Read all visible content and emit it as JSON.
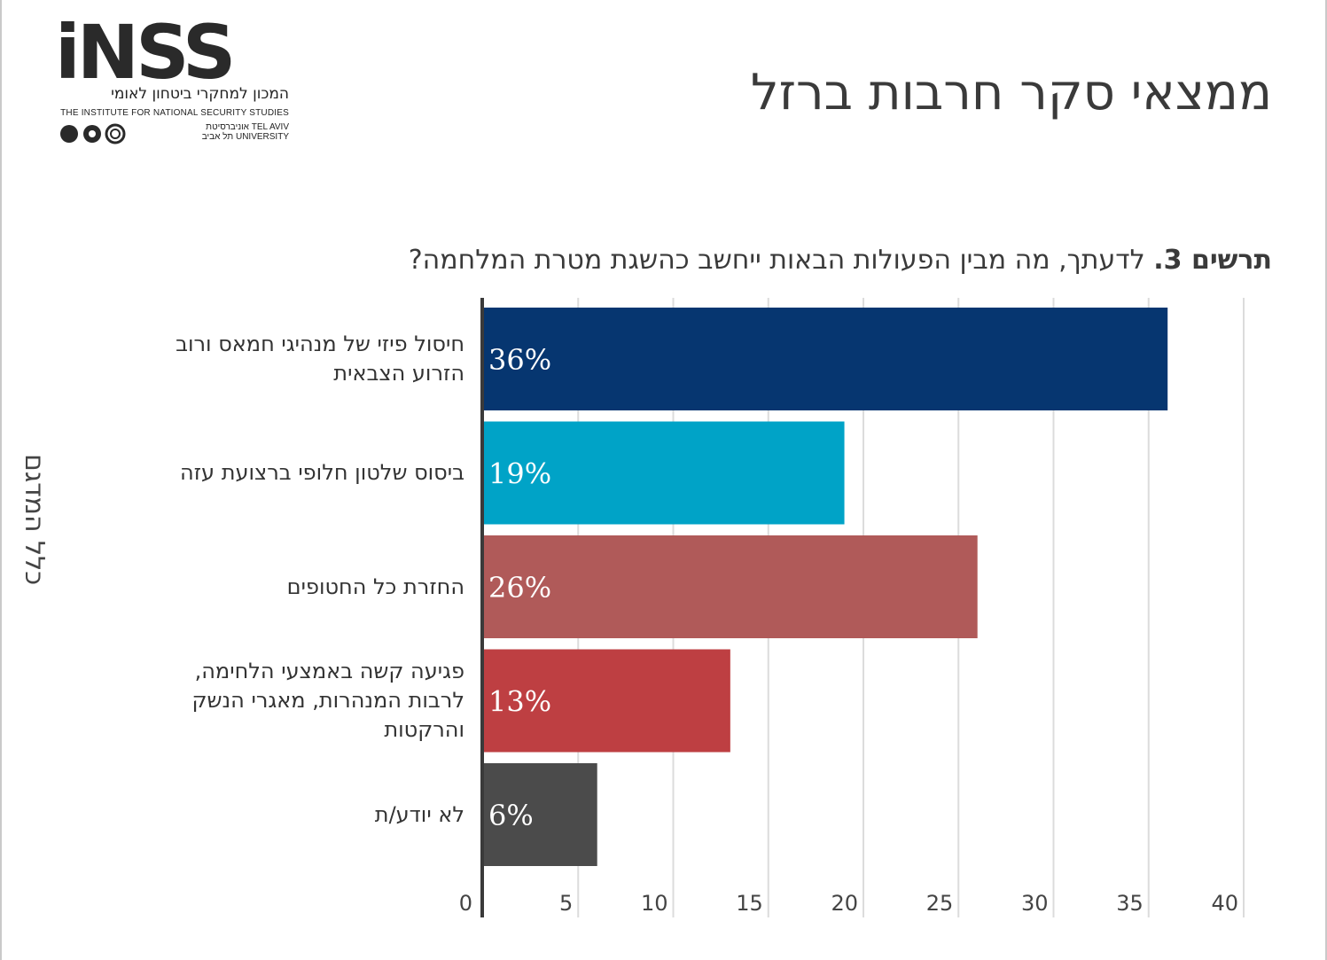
{
  "logo": {
    "brand": "iNSS",
    "hebrew": "המכון למחקרי ביטחון לאומי",
    "english": "THE INSTITUTE FOR NATIONAL SECURITY STUDIES",
    "university_line1": "אוניברסיטת TEL AVIV",
    "university_line2": "תל אביב UNIVERSITY"
  },
  "page_title": "ממצאי סקר חרבות ברזל",
  "chart_heading": {
    "prefix": "תרשים 3.",
    "question": " לדעתך, מה מבין הפעולות הבאות ייחשב כהשגת מטרת המלחמה?"
  },
  "y_group_label": "כלל המדגם",
  "chart_data": {
    "type": "bar",
    "orientation": "horizontal",
    "title": "לדעתך, מה מבין הפעולות הבאות ייחשב כהשגת מטרת המלחמה?",
    "categories": [
      [
        "חיסול פיזי של מנהיגי חמאס ורוב",
        "הזרוע הצבאית"
      ],
      [
        "ביסוס שלטון חלופי ברצועת עזה"
      ],
      [
        "החזרת כל החטופים"
      ],
      [
        "פגיעה קשה באמצעי הלחימה,",
        "לרבות המנהרות, מאגרי הנשק",
        "והרקטות"
      ],
      [
        "לא יודע/ת"
      ]
    ],
    "values": [
      36,
      19,
      26,
      13,
      6
    ],
    "value_labels": [
      "36%",
      "19%",
      "26%",
      "13%",
      "6%"
    ],
    "colors": [
      "#063670",
      "#00a3c7",
      "#b05a59",
      "#be3f42",
      "#4b4b4b"
    ],
    "xlim": [
      0,
      40
    ],
    "xticks": [
      0,
      5,
      10,
      15,
      20,
      25,
      30,
      35,
      40
    ],
    "grid": true
  }
}
